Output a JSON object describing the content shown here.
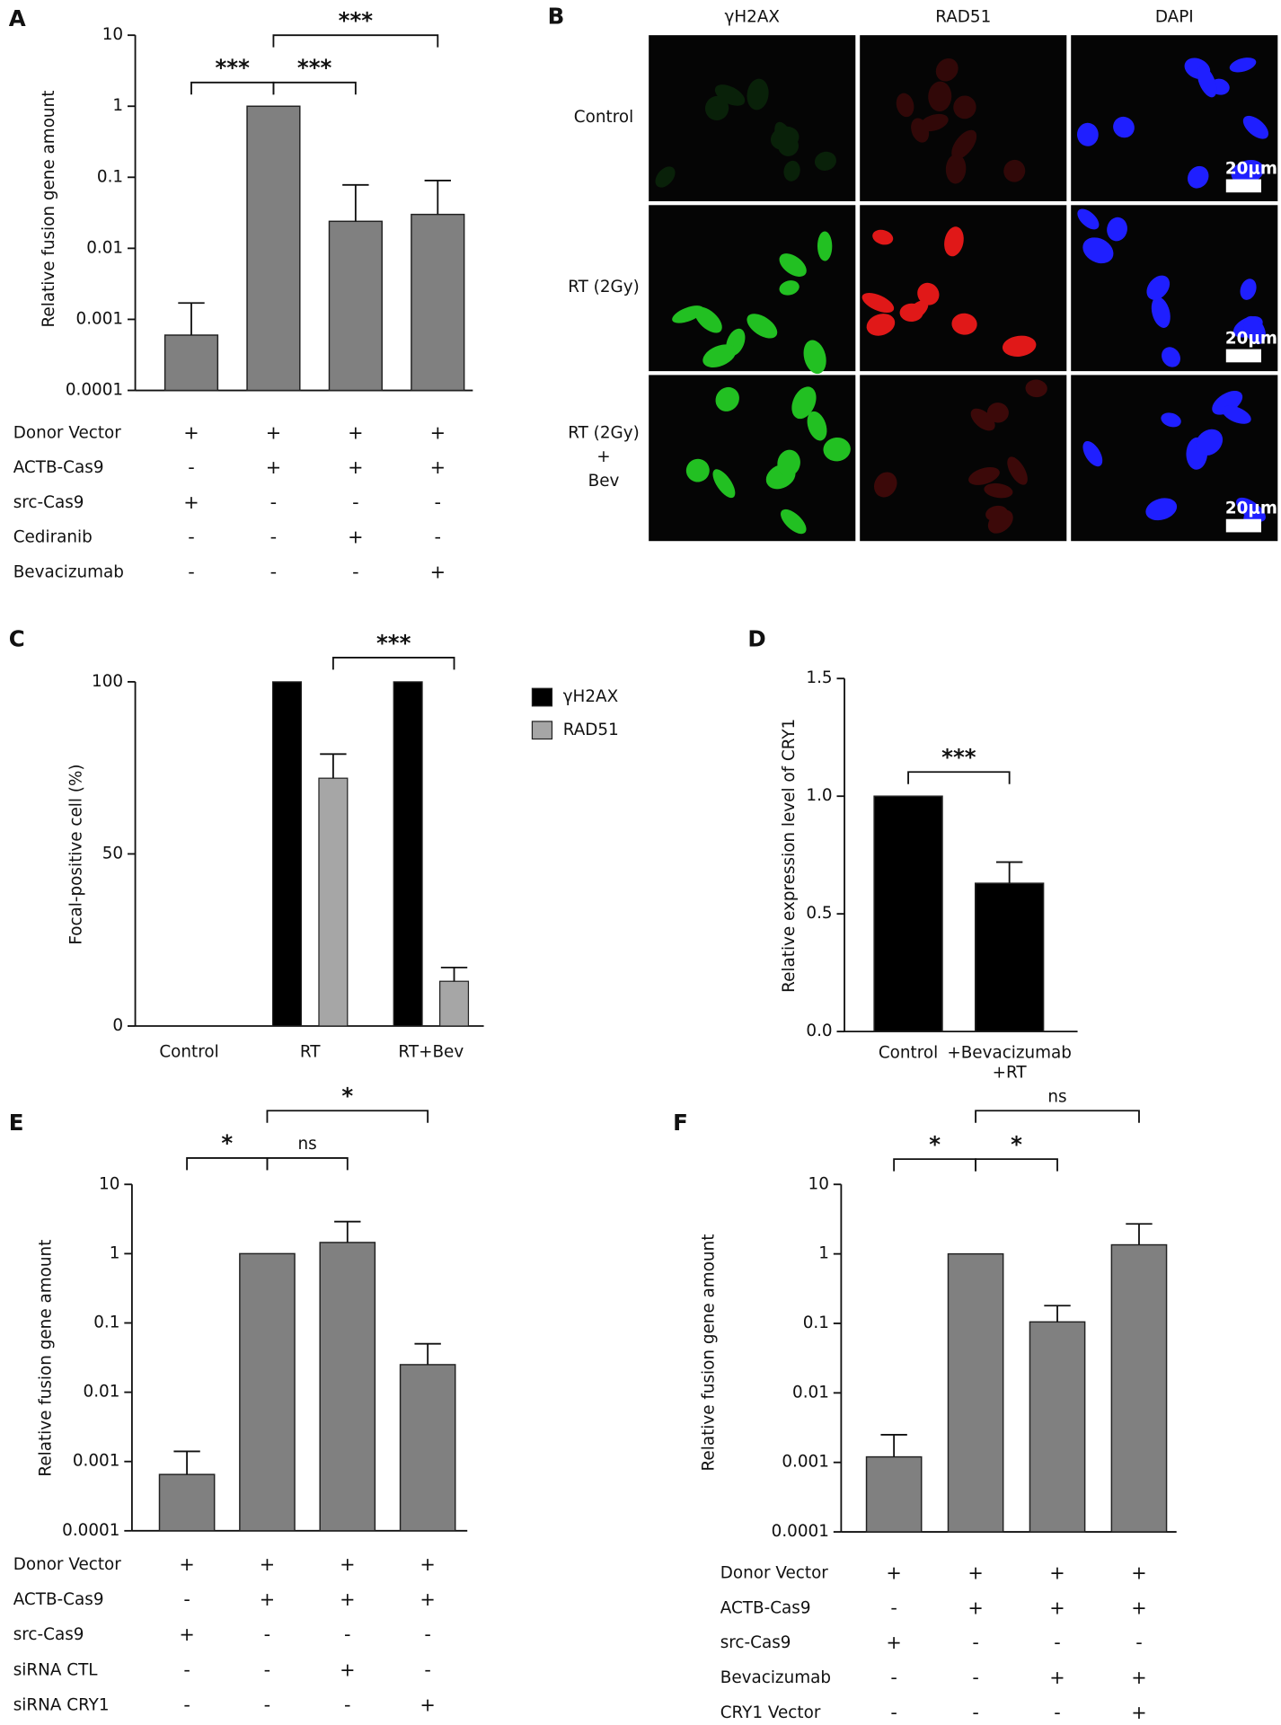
{
  "image_panel": {
    "panel": "B",
    "columns": [
      "γH2AX",
      "RAD51",
      "DAPI"
    ],
    "rows": [
      "Control",
      "RT (2Gy)",
      "RT (2Gy)\n+\nBev"
    ],
    "scale_bar": "20μm"
  },
  "chart_data": [
    {
      "panel": "A",
      "type": "bar",
      "y_label": "Relative fusion gene amount",
      "log_scale": true,
      "ylim": [
        0.0001,
        10
      ],
      "yticks": [
        0.0001,
        0.001,
        0.01,
        0.1,
        1,
        10
      ],
      "values": [
        0.0006,
        1,
        0.024,
        0.03
      ],
      "errors": [
        0.0011,
        null,
        0.054,
        0.06
      ],
      "color": "#808080",
      "brackets": [
        {
          "from": 0,
          "to": 1,
          "label": "***"
        },
        {
          "from": 1,
          "to": 2,
          "label": "***"
        },
        {
          "from": 1,
          "to": 3,
          "label": "***"
        }
      ],
      "conditions": [
        {
          "label": "Donor Vector",
          "values": [
            "+",
            "+",
            "+",
            "+"
          ]
        },
        {
          "label": "ACTB-Cas9",
          "values": [
            "-",
            "+",
            "+",
            "+"
          ]
        },
        {
          "label": "src-Cas9",
          "values": [
            "+",
            "-",
            "-",
            "-"
          ]
        },
        {
          "label": "Cediranib",
          "values": [
            "-",
            "-",
            "+",
            "-"
          ]
        },
        {
          "label": "Bevacizumab",
          "values": [
            "-",
            "-",
            "-",
            "+"
          ]
        }
      ]
    },
    {
      "panel": "C",
      "type": "grouped_bar",
      "y_label": "Focal-positive cell (%)",
      "ylim": [
        0,
        100
      ],
      "yticks": [
        0,
        50,
        100
      ],
      "categories": [
        "Control",
        "RT",
        "RT+Bev"
      ],
      "series": [
        {
          "name": "γH2AX",
          "color": "#000000",
          "values": [
            0,
            100,
            100
          ]
        },
        {
          "name": "RAD51",
          "color": "#a6a6a6",
          "values": [
            0,
            72,
            13
          ],
          "errors": [
            null,
            7,
            4
          ]
        }
      ],
      "legend": "right",
      "brackets": [
        {
          "from": 1,
          "to": 2,
          "label": "***"
        }
      ]
    },
    {
      "panel": "D",
      "type": "bar",
      "y_label": "Relative expression level of CRY1",
      "ylim": [
        0,
        1.5
      ],
      "yticks": [
        {
          "value": 0,
          "label": "0.0"
        },
        {
          "value": 0.5,
          "label": "0.5"
        },
        {
          "value": 1,
          "label": "1.0"
        },
        {
          "value": 1.5,
          "label": "1.5"
        }
      ],
      "categories": [
        "Control",
        "+Bevacizumab\n+RT"
      ],
      "values": [
        1,
        0.63
      ],
      "errors": [
        null,
        0.09
      ],
      "color": "#000000",
      "brackets": [
        {
          "from": 0,
          "to": 1,
          "label": "***"
        }
      ]
    },
    {
      "panel": "E",
      "type": "bar",
      "y_label": "Relative fusion gene amount",
      "log_scale": true,
      "ylim": [
        0.0001,
        10
      ],
      "yticks": [
        0.0001,
        0.001,
        0.01,
        0.1,
        1,
        10
      ],
      "values": [
        0.00065,
        1,
        1.45,
        0.025
      ],
      "errors": [
        0.00075,
        null,
        1.45,
        0.025
      ],
      "color": "#808080",
      "brackets": [
        {
          "from": 0,
          "to": 1,
          "label": "*"
        },
        {
          "from": 1,
          "to": 2,
          "label": "ns"
        },
        {
          "from": 1,
          "to": 3,
          "label": "*"
        }
      ],
      "conditions": [
        {
          "label": "Donor Vector",
          "values": [
            "+",
            "+",
            "+",
            "+"
          ]
        },
        {
          "label": "ACTB-Cas9",
          "values": [
            "-",
            "+",
            "+",
            "+"
          ]
        },
        {
          "label": "src-Cas9",
          "values": [
            "+",
            "-",
            "-",
            "-"
          ]
        },
        {
          "label": "siRNA CTL",
          "values": [
            "-",
            "-",
            "+",
            "-"
          ]
        },
        {
          "label": "siRNA CRY1",
          "values": [
            "-",
            "-",
            "-",
            "+"
          ]
        }
      ]
    },
    {
      "panel": "F",
      "type": "bar",
      "y_label": "Relative fusion gene amount",
      "log_scale": true,
      "ylim": [
        0.0001,
        10
      ],
      "yticks": [
        0.0001,
        0.001,
        0.01,
        0.1,
        1,
        10
      ],
      "values": [
        0.0012,
        1,
        0.105,
        1.35
      ],
      "errors": [
        0.0013,
        null,
        0.075,
        1.35
      ],
      "color": "#808080",
      "brackets": [
        {
          "from": 0,
          "to": 1,
          "label": "*"
        },
        {
          "from": 1,
          "to": 2,
          "label": "*"
        },
        {
          "from": 1,
          "to": 3,
          "label": "ns"
        }
      ],
      "conditions": [
        {
          "label": "Donor Vector",
          "values": [
            "+",
            "+",
            "+",
            "+"
          ]
        },
        {
          "label": "ACTB-Cas9",
          "values": [
            "-",
            "+",
            "+",
            "+"
          ]
        },
        {
          "label": "src-Cas9",
          "values": [
            "+",
            "-",
            "-",
            "-"
          ]
        },
        {
          "label": "Bevacizumab",
          "values": [
            "-",
            "-",
            "+",
            "+"
          ]
        },
        {
          "label": "CRY1 Vector",
          "values": [
            "-",
            "-",
            "-",
            "+"
          ]
        }
      ]
    }
  ]
}
